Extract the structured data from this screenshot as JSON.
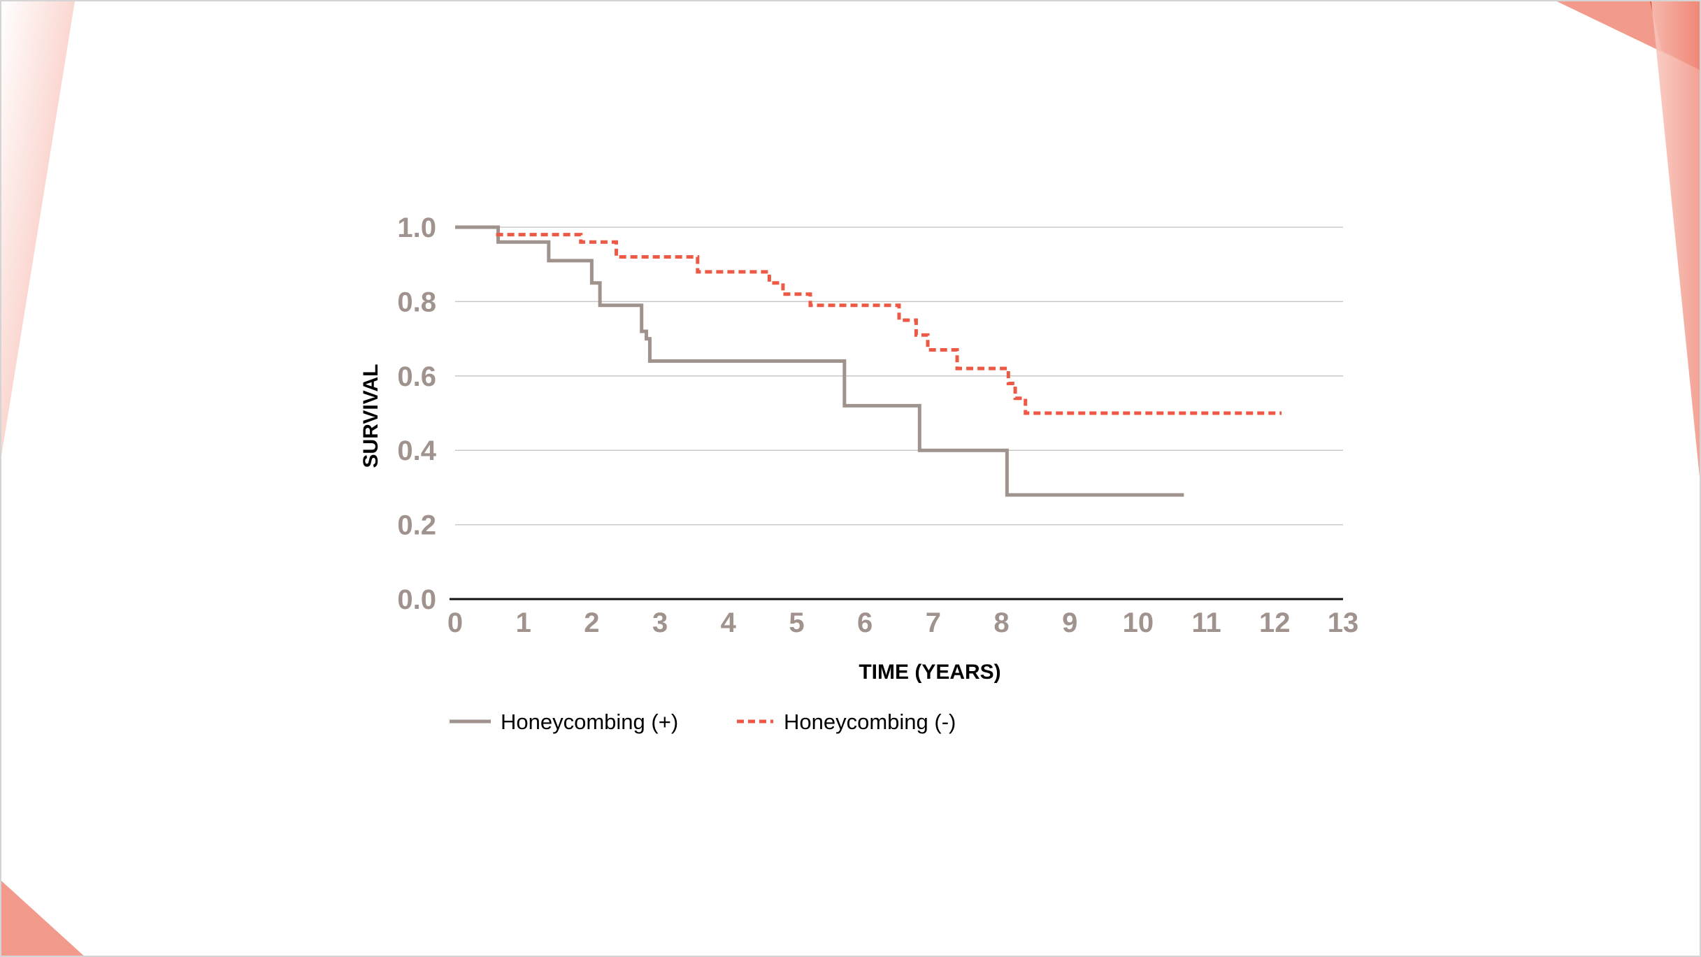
{
  "colors": {
    "background": "#ffffff",
    "grid": "#c8c8c8",
    "axis": "#111111",
    "tick_label": "#a0928c",
    "series_positive": "#a0928c",
    "series_negative": "#ec5a45",
    "accent_light": "#f9c6bd",
    "accent_mid": "#f29a8c",
    "accent_dark": "#e8533f"
  },
  "chart_data": {
    "type": "line",
    "subtype": "kaplan-meier-step",
    "title": "",
    "xlabel": "TIME (YEARS)",
    "ylabel": "SURVIVAL",
    "xlim": [
      0,
      13
    ],
    "ylim": [
      0,
      1.0
    ],
    "x_ticks": [
      "0",
      "1",
      "2",
      "3",
      "4",
      "5",
      "6",
      "7",
      "8",
      "9",
      "10",
      "11",
      "12",
      "13"
    ],
    "y_ticks": [
      "0.0",
      "0.2",
      "0.4",
      "0.6",
      "0.8",
      "1.0"
    ],
    "grid": true,
    "legend_position": "bottom-left",
    "series": [
      {
        "name": "Honeycombing (+)",
        "style": "solid",
        "color": "#a0928c",
        "points": [
          [
            0,
            1.0
          ],
          [
            0.63,
            0.96
          ],
          [
            1.37,
            0.91
          ],
          [
            2.0,
            0.85
          ],
          [
            2.12,
            0.79
          ],
          [
            2.73,
            0.72
          ],
          [
            2.8,
            0.7
          ],
          [
            2.85,
            0.64
          ],
          [
            5.7,
            0.52
          ],
          [
            6.8,
            0.4
          ],
          [
            8.08,
            0.28
          ],
          [
            10.67,
            0.28
          ]
        ]
      },
      {
        "name": "Honeycombing (-)",
        "style": "dashed",
        "color": "#ec5a45",
        "points": [
          [
            0.6,
            0.98
          ],
          [
            1.84,
            0.96
          ],
          [
            2.36,
            0.92
          ],
          [
            3.55,
            0.88
          ],
          [
            4.6,
            0.85
          ],
          [
            4.8,
            0.82
          ],
          [
            5.2,
            0.79
          ],
          [
            6.5,
            0.75
          ],
          [
            6.75,
            0.71
          ],
          [
            6.92,
            0.67
          ],
          [
            7.35,
            0.62
          ],
          [
            8.1,
            0.58
          ],
          [
            8.2,
            0.54
          ],
          [
            8.35,
            0.5
          ],
          [
            12.1,
            0.5
          ]
        ]
      }
    ]
  }
}
